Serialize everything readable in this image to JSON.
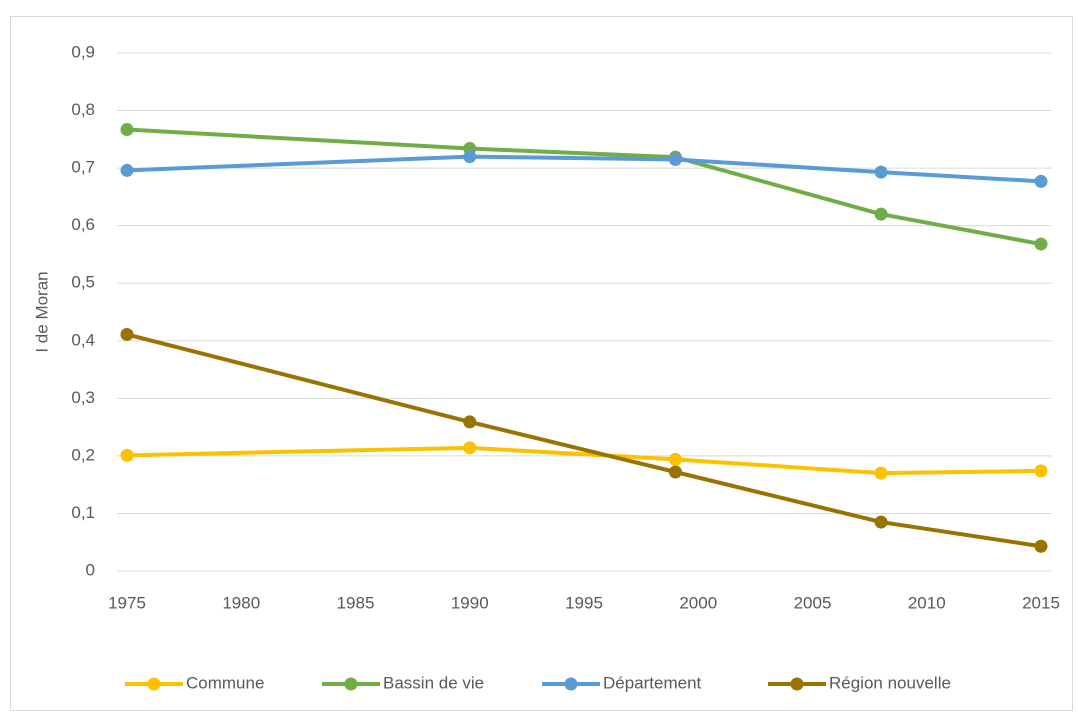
{
  "chart_data": {
    "type": "line",
    "y_label": "I de Moran",
    "x": [
      1975,
      1990,
      1999,
      2008,
      2015
    ],
    "xlim": [
      1975,
      2015
    ],
    "xticks": [
      1975,
      1980,
      1985,
      1990,
      1995,
      2000,
      2005,
      2010,
      2015
    ],
    "ylim": [
      0,
      0.9
    ],
    "yticks": [
      0,
      {
        "value": 0.1,
        "label": "0,1"
      },
      {
        "value": 0.2,
        "label": "0,2"
      },
      {
        "value": 0.3,
        "label": "0,3"
      },
      {
        "value": 0.4,
        "label": "0,4"
      },
      {
        "value": 0.5,
        "label": "0,5"
      },
      {
        "value": 0.6,
        "label": "0,6"
      },
      {
        "value": 0.7,
        "label": "0,7"
      },
      {
        "value": 0.8,
        "label": "0,8"
      },
      {
        "value": 0.9,
        "label": "0,9"
      }
    ],
    "grid": true,
    "legend": "bottom",
    "series": [
      {
        "name": "Commune",
        "color": "#FFC000",
        "values": [
          0.201,
          0.214,
          0.194,
          0.17,
          0.174
        ]
      },
      {
        "name": "Bassin de vie",
        "color": "#70AD47",
        "values": [
          0.767,
          0.734,
          0.719,
          0.62,
          0.568
        ]
      },
      {
        "name": "Département",
        "color": "#5B9BD5",
        "values": [
          0.696,
          0.72,
          0.715,
          0.693,
          0.677
        ]
      },
      {
        "name": "Région nouvelle",
        "color": "#997300",
        "values": [
          0.411,
          0.259,
          0.172,
          0.085,
          0.043
        ]
      }
    ]
  }
}
